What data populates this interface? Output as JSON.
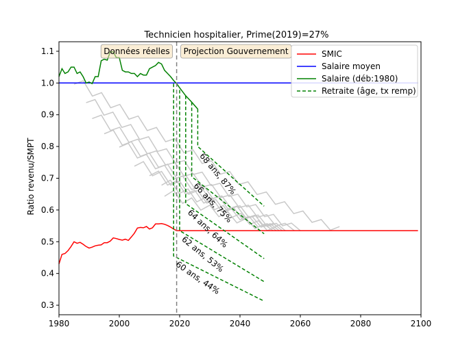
{
  "chart_data": {
    "type": "line",
    "title": "Technicien hospitalier, Prime(2019)=27%",
    "xlabel": "",
    "ylabel": "Ratio revenu/SMPT",
    "xlim": [
      1980,
      2100
    ],
    "ylim": [
      0.27,
      1.13
    ],
    "xticks": [
      1980,
      2000,
      2020,
      2040,
      2060,
      2080,
      2100
    ],
    "yticks": [
      0.3,
      0.4,
      0.5,
      0.6,
      0.7,
      0.8,
      0.9,
      1.0,
      1.1
    ],
    "grid": false,
    "legend_position": "top-right",
    "vline_x": 2019,
    "region_labels": [
      "Données réelles",
      "Projection Gouvernement"
    ],
    "series": [
      {
        "name": "SMIC",
        "color": "#ff0000",
        "style": "solid",
        "x": [
          1980,
          1981,
          1982,
          1983,
          1984,
          1985,
          1986,
          1987,
          1988,
          1989,
          1990,
          1991,
          1992,
          1993,
          1994,
          1995,
          1996,
          1997,
          1998,
          1999,
          2000,
          2001,
          2002,
          2003,
          2004,
          2005,
          2006,
          2007,
          2008,
          2009,
          2010,
          2011,
          2012,
          2013,
          2014,
          2015,
          2016,
          2017,
          2018,
          2019,
          2020,
          2030,
          2040,
          2060,
          2080,
          2099
        ],
        "y": [
          0.43,
          0.46,
          0.463,
          0.472,
          0.485,
          0.5,
          0.495,
          0.498,
          0.492,
          0.485,
          0.48,
          0.483,
          0.487,
          0.489,
          0.49,
          0.497,
          0.497,
          0.502,
          0.512,
          0.51,
          0.507,
          0.505,
          0.508,
          0.504,
          0.515,
          0.527,
          0.543,
          0.545,
          0.544,
          0.548,
          0.54,
          0.544,
          0.556,
          0.556,
          0.557,
          0.555,
          0.551,
          0.546,
          0.54,
          0.535,
          0.535,
          0.535,
          0.535,
          0.535,
          0.535,
          0.535
        ]
      },
      {
        "name": "Salaire moyen",
        "color": "#0000ff",
        "style": "solid",
        "x": [
          1980,
          2099
        ],
        "y": [
          1.0,
          1.0
        ]
      },
      {
        "name": "Salaire (déb:1980)",
        "color": "#008000",
        "style": "solid",
        "x": [
          1980,
          1981,
          1982,
          1983,
          1984,
          1985,
          1986,
          1987,
          1988,
          1989,
          1990,
          1991,
          1992,
          1993,
          1994,
          1995,
          1996,
          1997,
          1998,
          1999,
          2000,
          2001,
          2002,
          2003,
          2004,
          2005,
          2006,
          2007,
          2008,
          2009,
          2010,
          2011,
          2012,
          2013,
          2014,
          2015,
          2016,
          2017,
          2018,
          2019,
          2020,
          2022,
          2024,
          2026
        ],
        "y": [
          1.02,
          1.045,
          1.03,
          1.035,
          1.05,
          1.05,
          1.03,
          1.035,
          1.02,
          1.0,
          1.003,
          0.998,
          1.02,
          1.02,
          1.07,
          1.075,
          1.072,
          1.098,
          1.098,
          1.08,
          1.08,
          1.04,
          1.035,
          1.035,
          1.03,
          1.03,
          1.02,
          1.03,
          1.025,
          1.025,
          1.045,
          1.05,
          1.055,
          1.065,
          1.06,
          1.04,
          1.03,
          1.02,
          1.008,
          0.998,
          0.985,
          0.96,
          0.94,
          0.918
        ]
      },
      {
        "name": "Retraite (âge, tx remp)",
        "color": "#008000",
        "style": "dashed",
        "segments": [
          {
            "label": "60 ans, 44%",
            "x": [
              2018,
              2018,
              2048
            ],
            "y": [
              0.998,
              0.455,
              0.313
            ]
          },
          {
            "label": "62 ans, 53%",
            "x": [
              2020,
              2020,
              2048
            ],
            "y": [
              0.978,
              0.535,
              0.374
            ]
          },
          {
            "label": "64 ans, 64%",
            "x": [
              2022,
              2022,
              2048
            ],
            "y": [
              0.96,
              0.62,
              0.447
            ]
          },
          {
            "label": "66 ans, 75%",
            "x": [
              2024,
              2024,
              2048
            ],
            "y": [
              0.94,
              0.705,
              0.525
            ]
          },
          {
            "label": "68 ans, 87%",
            "x": [
              2026,
              2026,
              2048
            ],
            "y": [
              0.918,
              0.8,
              0.612
            ]
          }
        ]
      }
    ],
    "annotations": [
      "60 ans, 44%",
      "62 ans, 53%",
      "64 ans, 64%",
      "66 ans, 75%",
      "68 ans, 87%"
    ],
    "background_series": [
      {
        "color": "#c8c8c8",
        "start": [
          1985,
          1.008
        ],
        "end": [
          2073,
          0.535
        ]
      },
      {
        "color": "#c8c8c8",
        "start": [
          1989,
          0.95
        ],
        "end": [
          2060,
          0.535
        ]
      },
      {
        "color": "#c8c8c8",
        "start": [
          1991,
          0.9
        ],
        "end": [
          2058,
          0.535
        ]
      },
      {
        "color": "#c8c8c8",
        "start": [
          1995,
          0.852
        ],
        "end": [
          2055,
          0.535
        ]
      },
      {
        "color": "#c8c8c8",
        "start": [
          2000,
          0.81
        ],
        "end": [
          2054,
          0.535
        ]
      },
      {
        "color": "#c8c8c8",
        "start": [
          2005,
          0.75
        ],
        "end": [
          2053,
          0.535
        ]
      },
      {
        "color": "#c8c8c8",
        "start": [
          2010,
          0.72
        ],
        "end": [
          2052,
          0.535
        ]
      },
      {
        "color": "#c8c8c8",
        "start": [
          2014,
          0.69
        ],
        "end": [
          2052,
          0.535
        ]
      },
      {
        "color": "#c8c8c8",
        "start": [
          2015,
          0.655
        ],
        "end": [
          2051,
          0.535
        ]
      }
    ]
  }
}
